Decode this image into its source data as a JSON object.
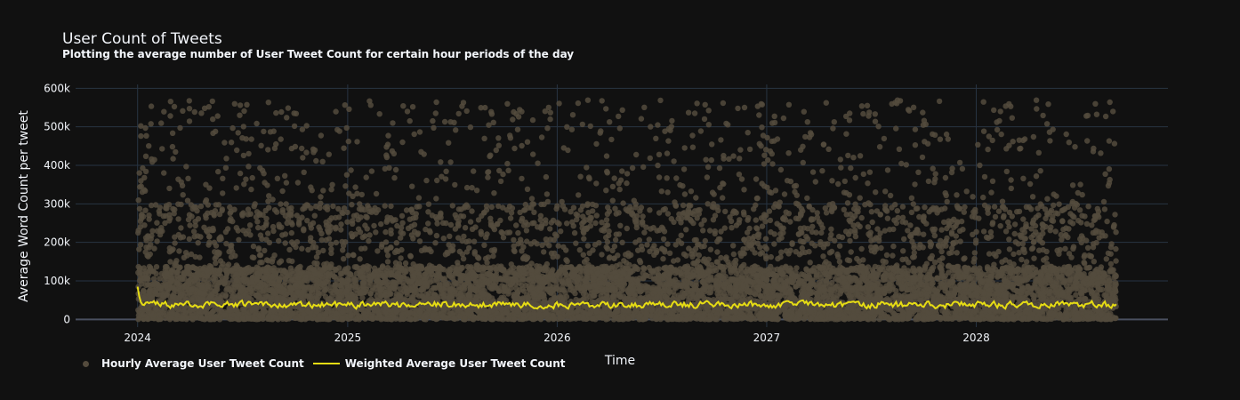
{
  "chart_data": {
    "type": "scatter",
    "title": "User Count of Tweets",
    "subtitle": "Plotting the average number of User Tweet Count for certain hour periods of the day",
    "xlabel": "Time",
    "ylabel": "Average Word Count per tweet",
    "x_ticks": [
      "2024",
      "2025",
      "2026",
      "2027",
      "2028"
    ],
    "y_ticks": [
      "0",
      "100k",
      "200k",
      "300k",
      "400k",
      "500k",
      "600k"
    ],
    "xlim": [
      "2023-09-15",
      "2028-11-30"
    ],
    "ylim": [
      -20000,
      610000
    ],
    "x_range_data": [
      "2024-01-01",
      "2028-09-01"
    ],
    "grid": true,
    "legend_position": "bottom-left",
    "series": [
      {
        "name": "Hourly Average User Tweet Count",
        "mode": "markers",
        "color": "#544b3d",
        "distribution": {
          "dense_range": [
            0,
            250000
          ],
          "sparse_max": 570000
        }
      },
      {
        "name": "Weighted Average User Tweet Count",
        "mode": "line",
        "color": "#e6dc14",
        "start_value": 85000,
        "typical_range": [
          25000,
          55000
        ]
      }
    ]
  }
}
